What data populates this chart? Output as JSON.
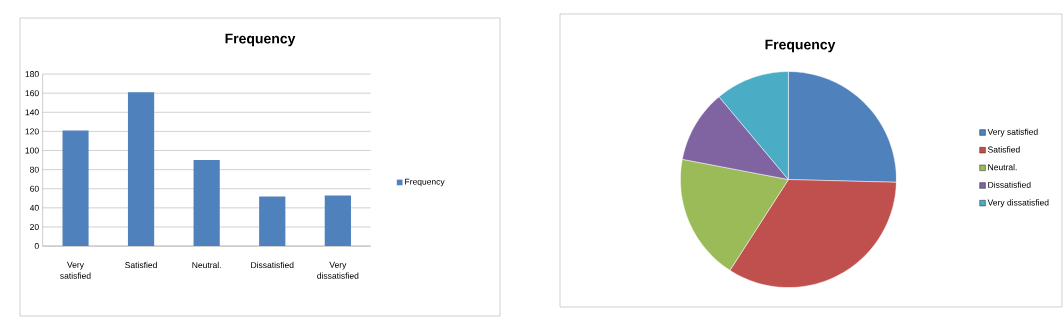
{
  "chart_data": [
    {
      "type": "bar",
      "title": "Frequency",
      "categories": [
        "Very satisfied",
        "Satisfied",
        "Neutral.",
        "Dissatisfied",
        "Very dissatisfied"
      ],
      "series": [
        {
          "name": "Frequency",
          "color": "#4f81bd",
          "values": [
            121,
            161,
            90,
            52,
            53
          ]
        }
      ],
      "ylim": [
        0,
        180
      ],
      "yticks": [
        0,
        20,
        40,
        60,
        80,
        100,
        120,
        140,
        160,
        180
      ],
      "grid": "y",
      "legend": "right"
    },
    {
      "type": "pie",
      "title": "Frequency",
      "categories": [
        "Very satisfied",
        "Satisfied",
        "Neutral.",
        "Dissatisfied",
        "Very dissatisfied"
      ],
      "values": [
        25.4,
        33.7,
        18.9,
        10.9,
        11.1
      ],
      "colors": [
        "#4f81bd",
        "#c0504d",
        "#9bbb59",
        "#8064a2",
        "#4bacc6"
      ],
      "legend": "right"
    }
  ]
}
